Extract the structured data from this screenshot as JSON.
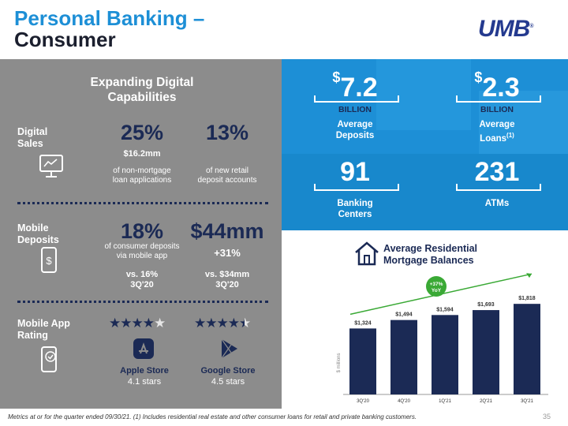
{
  "header": {
    "title_line1": "Personal Banking –",
    "title_line2": "Consumer",
    "logo": "UMB",
    "logo_mark": "®"
  },
  "left": {
    "heading_line1": "Expanding Digital",
    "heading_line2": "Capabilities",
    "digital_sales": {
      "label_line1": "Digital",
      "label_line2": "Sales",
      "stat1": "25%",
      "stat1_sub": "$16.2mm",
      "stat1_desc_line1": "of non-mortgage",
      "stat1_desc_line2": "loan applications",
      "stat2": "13%",
      "stat2_desc_line1": "of new retail",
      "stat2_desc_line2": "deposit accounts",
      "icon": "monitor-chart-icon"
    },
    "mobile_deposits": {
      "label_line1": "Mobile",
      "label_line2": "Deposits",
      "stat1": "18%",
      "stat1_desc_line1": "of consumer deposits",
      "stat1_desc_line2": "via mobile app",
      "stat1_vs_line1": "vs. 16%",
      "stat1_vs_line2": "3Q'20",
      "stat2": "$44mm",
      "stat2_sub": "+31%",
      "stat2_vs_line1": "vs. $34mm",
      "stat2_vs_line2": "3Q'20",
      "icon": "phone-dollar-icon"
    },
    "app_rating": {
      "label_line1": "Mobile App",
      "label_line2": "Rating",
      "apple_rating": 4.1,
      "apple_name": "Apple Store",
      "apple_stars": "4.1 stars",
      "google_rating": 4.5,
      "google_name": "Google Store",
      "google_stars": "4.5 stars",
      "icon": "phone-check-icon"
    }
  },
  "blue": {
    "deposits": {
      "currency": "$",
      "value": "7.2",
      "unit": "BILLION",
      "label_line1": "Average",
      "label_line2": "Deposits"
    },
    "loans": {
      "currency": "$",
      "value": "2.3",
      "unit": "BILLION",
      "label_line1": "Average",
      "label_line2": "Loans",
      "footnote": "(1)"
    },
    "centers": {
      "value": "91",
      "label_line1": "Banking",
      "label_line2": "Centers"
    },
    "atms": {
      "value": "231",
      "label": "ATMs"
    }
  },
  "mortgage": {
    "title_line1": "Average Residential",
    "title_line2": "Mortgage Balances",
    "growth_line1": "+37%",
    "growth_line2": "YoY",
    "colors": {
      "bar": "#1b2a55",
      "growth": "#3aa935"
    }
  },
  "chart_data": {
    "type": "bar",
    "categories": [
      "3Q'20",
      "4Q'20",
      "1Q'21",
      "2Q'21",
      "3Q'21"
    ],
    "values": [
      1324,
      1494,
      1594,
      1693,
      1818
    ],
    "value_labels": [
      "$1,324",
      "$1,494",
      "$1,594",
      "$1,693",
      "$1,818"
    ],
    "ylabel": "$ millions",
    "ylim": [
      0,
      1900
    ],
    "grid": false
  },
  "footer": {
    "note": "Metrics at or for the quarter ended 09/30/21. (1) Includes residential real estate and other consumer loans for retail and private banking customers.",
    "page": "35"
  }
}
